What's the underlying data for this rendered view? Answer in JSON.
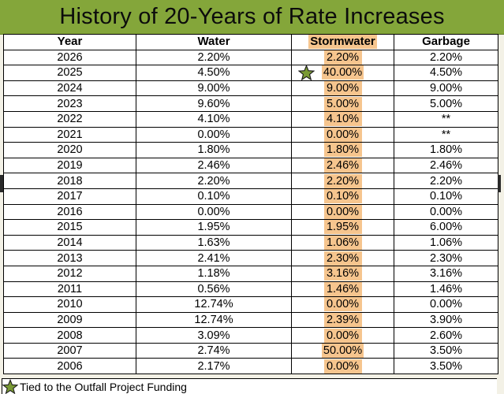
{
  "title": "History of 20-Years of Rate Increases",
  "headers": {
    "year": "Year",
    "water": "Water",
    "stormwater": "Stormwater",
    "garbage": "Garbage"
  },
  "rows": [
    {
      "year": "2026",
      "water": "2.20%",
      "stormwater": "2.20%",
      "garbage": "2.20%",
      "starred": false
    },
    {
      "year": "2025",
      "water": "4.50%",
      "stormwater": "40.00%",
      "garbage": "4.50%",
      "starred": true
    },
    {
      "year": "2024",
      "water": "9.00%",
      "stormwater": "9.00%",
      "garbage": "9.00%",
      "starred": false
    },
    {
      "year": "2023",
      "water": "9.60%",
      "stormwater": "5.00%",
      "garbage": "5.00%",
      "starred": false
    },
    {
      "year": "2022",
      "water": "4.10%",
      "stormwater": "4.10%",
      "garbage": "**",
      "starred": false
    },
    {
      "year": "2021",
      "water": "0.00%",
      "stormwater": "0.00%",
      "garbage": "**",
      "starred": false
    },
    {
      "year": "2020",
      "water": "1.80%",
      "stormwater": "1.80%",
      "garbage": "1.80%",
      "starred": false
    },
    {
      "year": "2019",
      "water": "2.46%",
      "stormwater": "2.46%",
      "garbage": "2.46%",
      "starred": false
    },
    {
      "year": "2018",
      "water": "2.20%",
      "stormwater": "2.20%",
      "garbage": "2.20%",
      "starred": false
    },
    {
      "year": "2017",
      "water": "0.10%",
      "stormwater": "0.10%",
      "garbage": "0.10%",
      "starred": false
    },
    {
      "year": "2016",
      "water": "0.00%",
      "stormwater": "0.00%",
      "garbage": "0.00%",
      "starred": false
    },
    {
      "year": "2015",
      "water": "1.95%",
      "stormwater": "1.95%",
      "garbage": "6.00%",
      "starred": false
    },
    {
      "year": "2014",
      "water": "1.63%",
      "stormwater": "1.06%",
      "garbage": "1.06%",
      "starred": false
    },
    {
      "year": "2013",
      "water": "2.41%",
      "stormwater": "2.30%",
      "garbage": "2.30%",
      "starred": false
    },
    {
      "year": "2012",
      "water": "1.18%",
      "stormwater": "3.16%",
      "garbage": "3.16%",
      "starred": false
    },
    {
      "year": "2011",
      "water": "0.56%",
      "stormwater": "1.46%",
      "garbage": "1.46%",
      "starred": false
    },
    {
      "year": "2010",
      "water": "12.74%",
      "stormwater": "0.00%",
      "garbage": "0.00%",
      "starred": false
    },
    {
      "year": "2009",
      "water": "12.74%",
      "stormwater": "2.39%",
      "garbage": "3.90%",
      "starred": false
    },
    {
      "year": "2008",
      "water": "3.09%",
      "stormwater": "0.00%",
      "garbage": "2.60%",
      "starred": false
    },
    {
      "year": "2007",
      "water": "2.74%",
      "stormwater": "50.00%",
      "garbage": "3.50%",
      "starred": false
    },
    {
      "year": "2006",
      "water": "2.17%",
      "stormwater": "0.00%",
      "garbage": "3.50%",
      "starred": false
    }
  ],
  "footnote": "Tied to the Outfall Project Funding",
  "colors": {
    "title_bar": "#84a63a",
    "stormwater_highlight": "#f6c58e",
    "star_fill": "#7a9a35",
    "background": "#f3f1e6"
  },
  "icons": {
    "row_marker": "star-icon",
    "footnote_marker": "star-icon"
  }
}
